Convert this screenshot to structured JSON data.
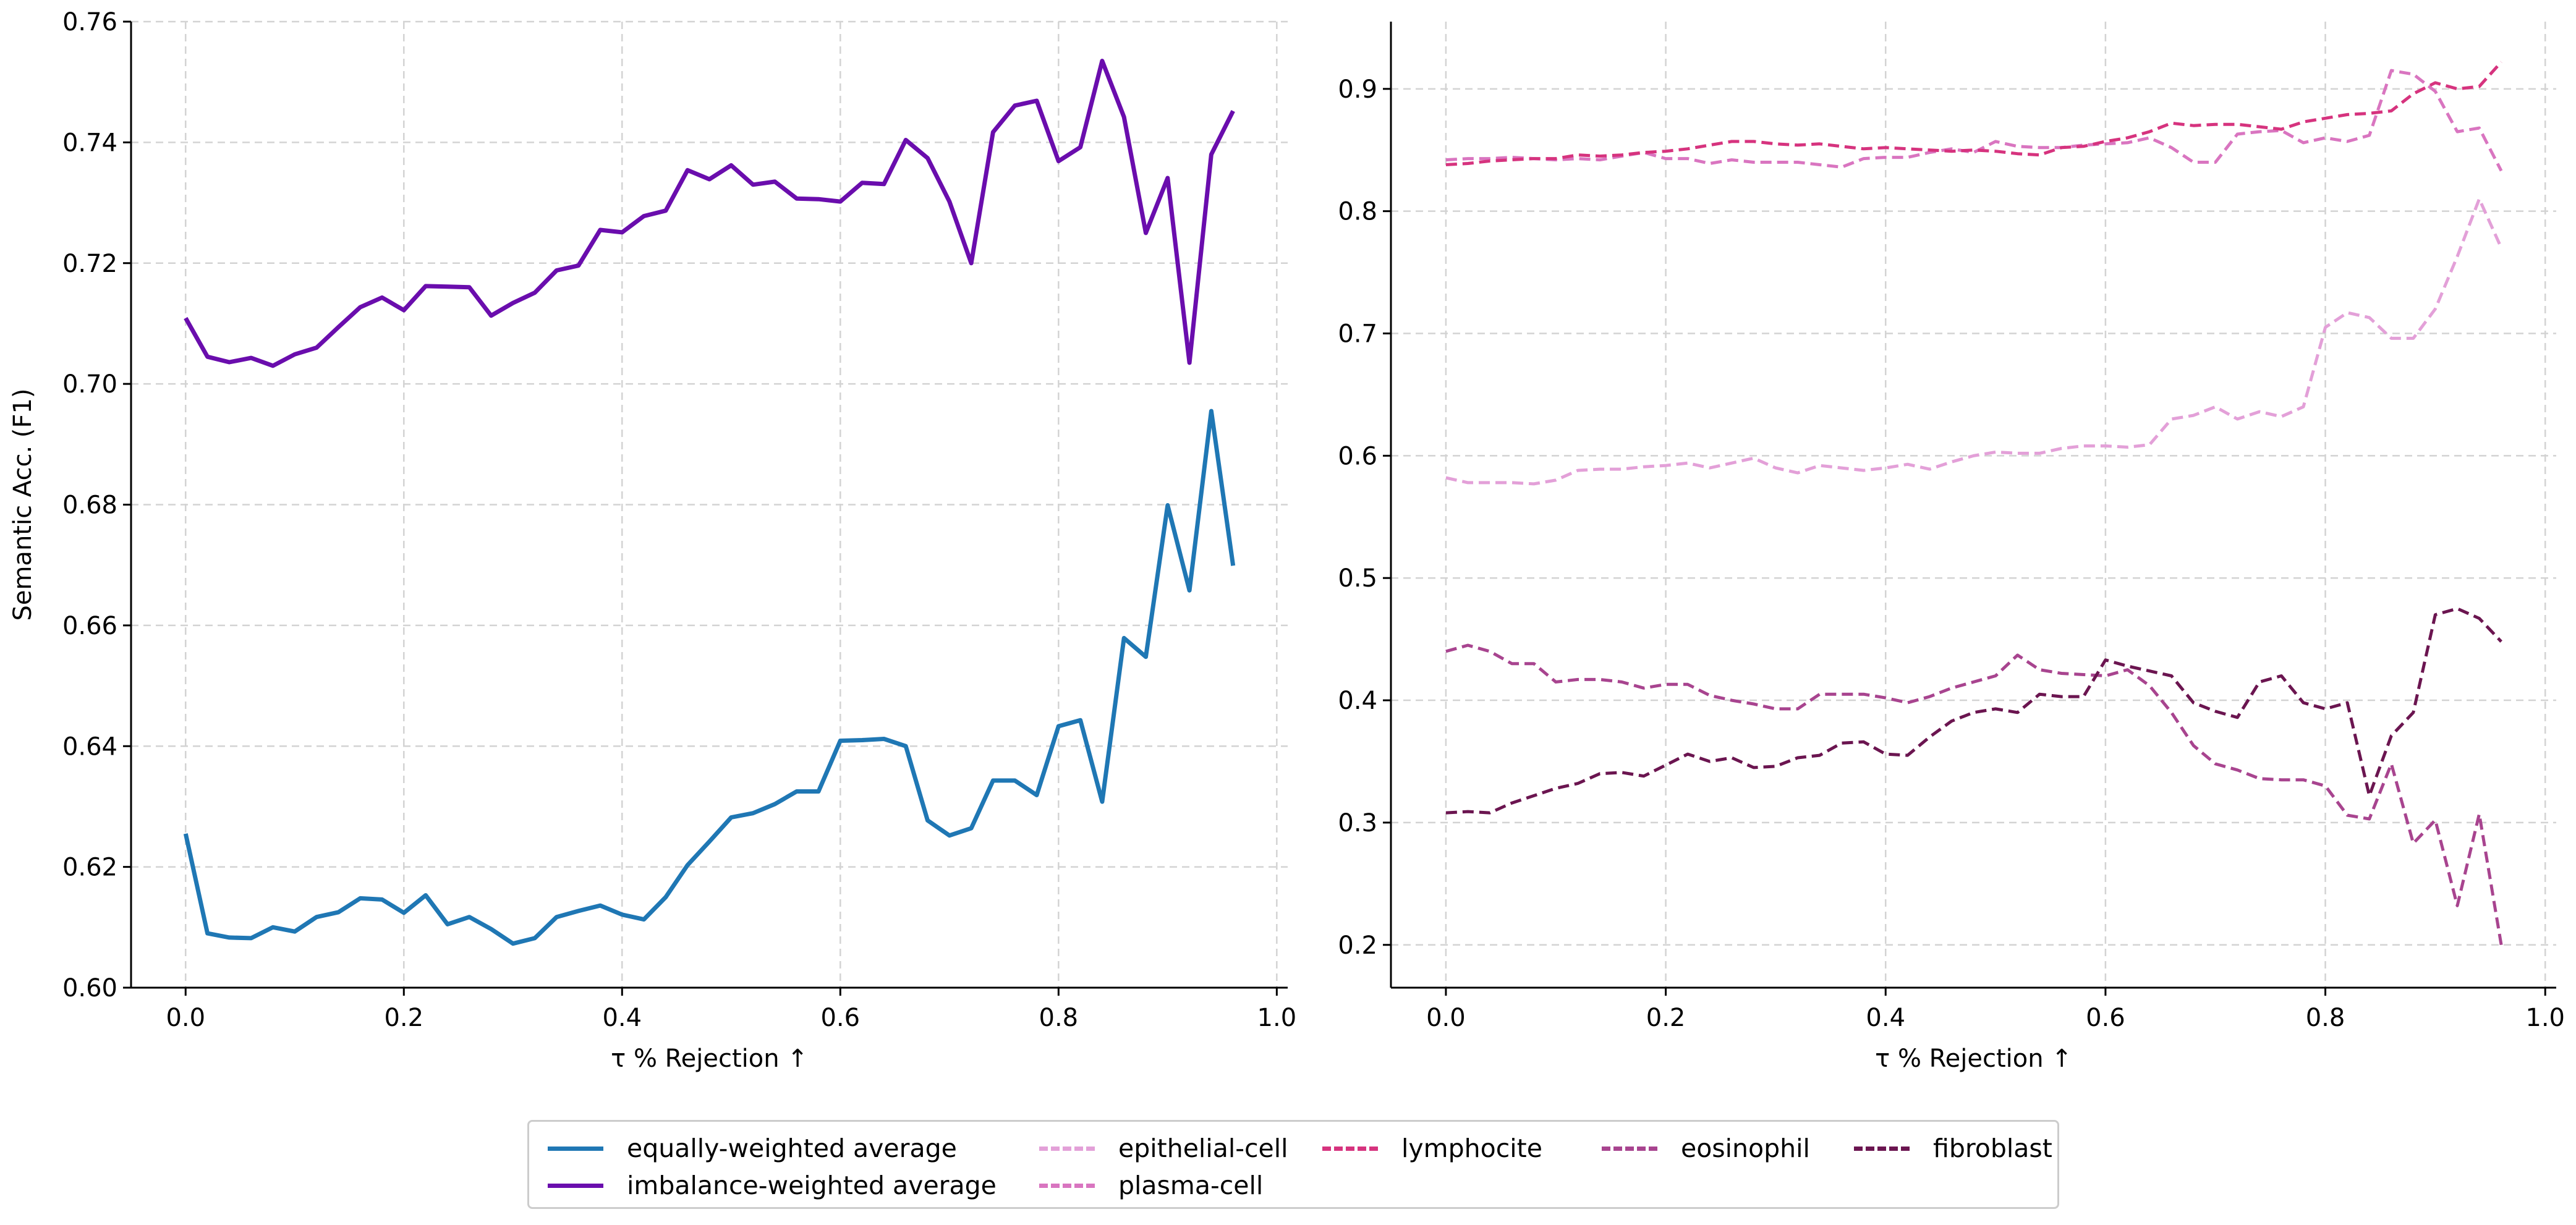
{
  "chart_data": [
    {
      "type": "line",
      "title": "",
      "xlabel": "τ % Rejection ↑",
      "ylabel": "Semantic Acc. (F1)",
      "xlim": [
        -0.05,
        1.01
      ],
      "ylim": [
        0.6,
        0.76
      ],
      "xticks": [
        "0.0",
        "0.2",
        "0.4",
        "0.6",
        "0.8",
        "1.0"
      ],
      "yticks": [
        "0.60",
        "0.62",
        "0.64",
        "0.66",
        "0.68",
        "0.70",
        "0.72",
        "0.74",
        "0.76"
      ],
      "grid": true,
      "x": [
        0.0,
        0.02,
        0.04,
        0.06,
        0.08,
        0.1,
        0.12,
        0.14,
        0.16,
        0.18,
        0.2,
        0.22,
        0.24,
        0.26,
        0.28,
        0.3,
        0.32,
        0.34,
        0.36,
        0.38,
        0.4,
        0.42,
        0.44,
        0.46,
        0.48,
        0.5,
        0.52,
        0.54,
        0.56,
        0.58,
        0.6,
        0.62,
        0.64,
        0.66,
        0.68,
        0.7,
        0.72,
        0.74,
        0.76,
        0.78,
        0.8,
        0.82,
        0.84,
        0.86,
        0.88,
        0.9,
        0.92,
        0.94,
        0.96
      ],
      "series": [
        {
          "name": "equally-weighted average",
          "color": "#1f77b4",
          "style": "solid",
          "values": [
            0.6255,
            0.609,
            0.6083,
            0.6082,
            0.61,
            0.6093,
            0.6117,
            0.6125,
            0.6148,
            0.6146,
            0.6124,
            0.6153,
            0.6105,
            0.6117,
            0.6097,
            0.6073,
            0.6082,
            0.6117,
            0.6127,
            0.6136,
            0.6121,
            0.6113,
            0.615,
            0.6203,
            0.6242,
            0.6282,
            0.6289,
            0.6304,
            0.6325,
            0.6325,
            0.6409,
            0.641,
            0.6412,
            0.64,
            0.6277,
            0.6252,
            0.6264,
            0.6343,
            0.6343,
            0.6319,
            0.6433,
            0.6443,
            0.6308,
            0.6579,
            0.6548,
            0.6799,
            0.6658,
            0.6955,
            0.6699
          ]
        },
        {
          "name": "imbalance-weighted average",
          "color": "#6a0dad",
          "style": "solid",
          "values": [
            0.7109,
            0.7045,
            0.7036,
            0.7043,
            0.703,
            0.7049,
            0.706,
            0.7094,
            0.7127,
            0.7143,
            0.7122,
            0.7162,
            0.7161,
            0.716,
            0.7113,
            0.7134,
            0.7151,
            0.7188,
            0.7196,
            0.7255,
            0.7251,
            0.7278,
            0.7287,
            0.7354,
            0.7339,
            0.7362,
            0.733,
            0.7335,
            0.7307,
            0.7306,
            0.7302,
            0.7333,
            0.7331,
            0.7404,
            0.7374,
            0.7302,
            0.72,
            0.7417,
            0.7461,
            0.7469,
            0.7369,
            0.7392,
            0.7535,
            0.7442,
            0.725,
            0.7341,
            0.7035,
            0.738,
            0.7452
          ]
        }
      ]
    },
    {
      "type": "line",
      "title": "",
      "xlabel": "τ % Rejection ↑",
      "ylabel": "",
      "xlim": [
        -0.05,
        1.01
      ],
      "ylim": [
        0.165,
        0.955
      ],
      "xticks": [
        "0.0",
        "0.2",
        "0.4",
        "0.6",
        "0.8",
        "1.0"
      ],
      "yticks": [
        "0.2",
        "0.3",
        "0.4",
        "0.5",
        "0.6",
        "0.7",
        "0.8",
        "0.9"
      ],
      "grid": true,
      "x": [
        0.0,
        0.02,
        0.04,
        0.06,
        0.08,
        0.1,
        0.12,
        0.14,
        0.16,
        0.18,
        0.2,
        0.22,
        0.24,
        0.26,
        0.28,
        0.3,
        0.32,
        0.34,
        0.36,
        0.38,
        0.4,
        0.42,
        0.44,
        0.46,
        0.48,
        0.5,
        0.52,
        0.54,
        0.56,
        0.58,
        0.6,
        0.62,
        0.64,
        0.66,
        0.68,
        0.7,
        0.72,
        0.74,
        0.76,
        0.78,
        0.8,
        0.82,
        0.84,
        0.86,
        0.88,
        0.9,
        0.92,
        0.94,
        0.96
      ],
      "series": [
        {
          "name": "epithelial-cell",
          "color": "#e3a0d8",
          "style": "dashed",
          "values": [
            0.582,
            0.578,
            0.578,
            0.578,
            0.577,
            0.58,
            0.588,
            0.589,
            0.589,
            0.591,
            0.592,
            0.594,
            0.59,
            0.594,
            0.598,
            0.59,
            0.586,
            0.592,
            0.59,
            0.588,
            0.59,
            0.593,
            0.589,
            0.595,
            0.6,
            0.603,
            0.602,
            0.602,
            0.606,
            0.608,
            0.608,
            0.607,
            0.609,
            0.63,
            0.633,
            0.64,
            0.63,
            0.636,
            0.632,
            0.64,
            0.705,
            0.717,
            0.713,
            0.696,
            0.696,
            0.72,
            0.763,
            0.81,
            0.77
          ]
        },
        {
          "name": "plasma-cell",
          "color": "#d975c0",
          "style": "dashed",
          "values": [
            0.842,
            0.843,
            0.843,
            0.844,
            0.843,
            0.842,
            0.843,
            0.842,
            0.845,
            0.848,
            0.843,
            0.843,
            0.839,
            0.842,
            0.84,
            0.84,
            0.84,
            0.838,
            0.836,
            0.843,
            0.844,
            0.844,
            0.848,
            0.851,
            0.848,
            0.857,
            0.853,
            0.852,
            0.852,
            0.854,
            0.855,
            0.856,
            0.86,
            0.852,
            0.84,
            0.84,
            0.863,
            0.865,
            0.866,
            0.856,
            0.86,
            0.857,
            0.862,
            0.915,
            0.912,
            0.898,
            0.865,
            0.868,
            0.833
          ]
        },
        {
          "name": "lymphocite",
          "color": "#d6337e",
          "style": "dashed",
          "values": [
            0.838,
            0.839,
            0.841,
            0.842,
            0.843,
            0.843,
            0.846,
            0.845,
            0.846,
            0.848,
            0.849,
            0.851,
            0.854,
            0.857,
            0.857,
            0.855,
            0.854,
            0.855,
            0.853,
            0.851,
            0.852,
            0.851,
            0.85,
            0.849,
            0.85,
            0.849,
            0.847,
            0.846,
            0.852,
            0.853,
            0.857,
            0.86,
            0.865,
            0.872,
            0.87,
            0.871,
            0.871,
            0.869,
            0.867,
            0.873,
            0.876,
            0.879,
            0.88,
            0.882,
            0.896,
            0.905,
            0.9,
            0.902,
            0.922
          ]
        },
        {
          "name": "eosinophil",
          "color": "#a8448f",
          "style": "dashed",
          "values": [
            0.44,
            0.445,
            0.44,
            0.43,
            0.43,
            0.415,
            0.417,
            0.417,
            0.415,
            0.41,
            0.413,
            0.413,
            0.404,
            0.4,
            0.397,
            0.393,
            0.393,
            0.405,
            0.405,
            0.405,
            0.402,
            0.398,
            0.403,
            0.41,
            0.415,
            0.42,
            0.437,
            0.425,
            0.422,
            0.421,
            0.42,
            0.425,
            0.412,
            0.39,
            0.363,
            0.348,
            0.343,
            0.336,
            0.335,
            0.335,
            0.33,
            0.306,
            0.303,
            0.348,
            0.283,
            0.302,
            0.232,
            0.307,
            0.2
          ]
        },
        {
          "name": "fibroblast",
          "color": "#6b1550",
          "style": "dashed",
          "values": [
            0.308,
            0.309,
            0.308,
            0.316,
            0.322,
            0.328,
            0.332,
            0.34,
            0.341,
            0.338,
            0.347,
            0.356,
            0.35,
            0.353,
            0.345,
            0.346,
            0.353,
            0.355,
            0.365,
            0.366,
            0.356,
            0.355,
            0.37,
            0.383,
            0.39,
            0.393,
            0.39,
            0.405,
            0.403,
            0.403,
            0.433,
            0.428,
            0.424,
            0.42,
            0.398,
            0.391,
            0.386,
            0.415,
            0.42,
            0.398,
            0.393,
            0.398,
            0.322,
            0.371,
            0.39,
            0.47,
            0.475,
            0.467,
            0.448
          ]
        }
      ]
    }
  ],
  "legend": {
    "placement": "bottom-center",
    "entries": [
      {
        "label": "equally-weighted average",
        "color": "#1f77b4",
        "style": "solid"
      },
      {
        "label": "imbalance-weighted average",
        "color": "#6a0dad",
        "style": "solid"
      },
      {
        "label": "epithelial-cell",
        "color": "#e3a0d8",
        "style": "dashed"
      },
      {
        "label": "plasma-cell",
        "color": "#d975c0",
        "style": "dashed"
      },
      {
        "label": "lymphocite",
        "color": "#d6337e",
        "style": "dashed"
      },
      {
        "label": "eosinophil",
        "color": "#a8448f",
        "style": "dashed"
      },
      {
        "label": "fibroblast",
        "color": "#6b1550",
        "style": "dashed"
      }
    ]
  }
}
